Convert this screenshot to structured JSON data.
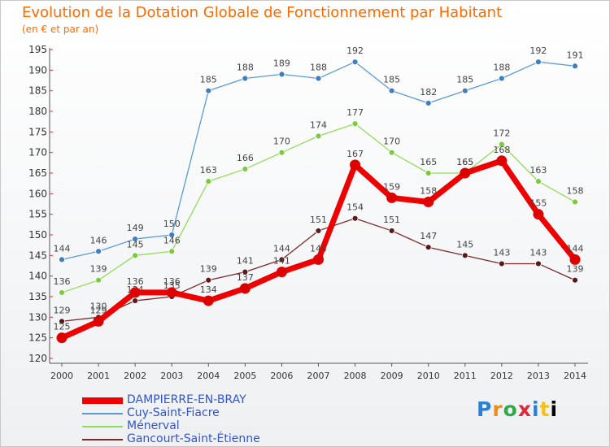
{
  "chart_data": {
    "type": "line",
    "title": "Evolution de la Dotation Globale de Fonctionnement par Habitant",
    "subtitle": "(en € et par an)",
    "xlabel": "",
    "ylabel": "",
    "ylim": [
      120,
      195
    ],
    "yticks": [
      120,
      125,
      130,
      135,
      140,
      145,
      150,
      155,
      160,
      165,
      170,
      175,
      180,
      185,
      190,
      195
    ],
    "grid": false,
    "legend_position": "bottom-left",
    "x": [
      "2000",
      "2001",
      "2002",
      "2003",
      "2004",
      "2005",
      "2006",
      "2007",
      "2008",
      "2009",
      "2010",
      "2011",
      "2012",
      "2013",
      "2014"
    ],
    "series": [
      {
        "name": "Cuy-Saint-Fiacre",
        "color": "#5b9bd5",
        "dot": "#3f7fc0",
        "values": [
          144,
          146,
          149,
          150,
          185,
          188,
          189,
          188,
          192,
          185,
          182,
          185,
          188,
          192,
          191
        ]
      },
      {
        "name": "Ménerval",
        "color": "#93dc5a",
        "dot": "#7acc3a",
        "values": [
          136,
          139,
          145,
          146,
          163,
          166,
          170,
          174,
          177,
          170,
          165,
          165,
          172,
          163,
          158
        ]
      },
      {
        "name": "Gancourt-Saint-Étienne",
        "color": "#7a2a2a",
        "dot": "#5a1a1a",
        "values": [
          129,
          130,
          134,
          135,
          139,
          141,
          144,
          151,
          154,
          151,
          147,
          145,
          143,
          143,
          139
        ]
      },
      {
        "name": "DAMPIERRE-EN-BRAY",
        "color": "#ee0000",
        "dot": "#dd0000",
        "values": [
          125,
          129,
          136,
          136,
          134,
          137,
          141,
          144,
          167,
          159,
          158,
          165,
          168,
          155,
          144
        ]
      }
    ]
  },
  "legend_order": [
    "DAMPIERRE-EN-BRAY",
    "Cuy-Saint-Fiacre",
    "Ménerval",
    "Gancourt-Saint-Étienne"
  ],
  "logo": [
    "P",
    "r",
    "o",
    "x",
    "i",
    "t",
    "i"
  ]
}
